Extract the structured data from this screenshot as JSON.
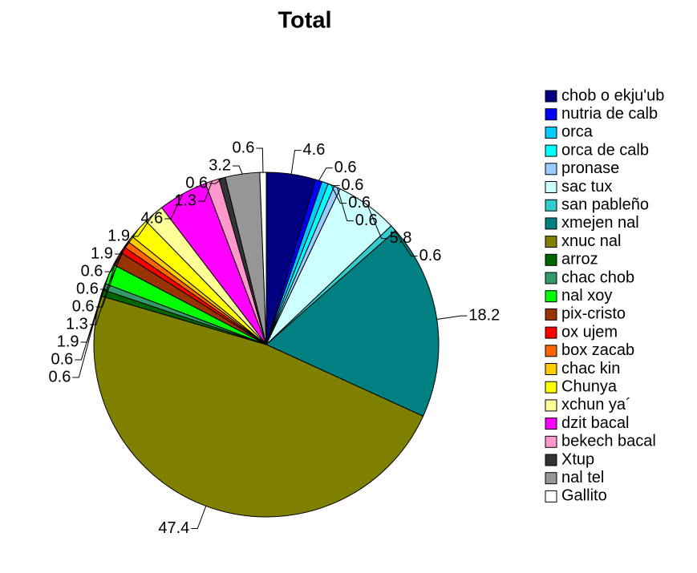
{
  "chart_data": {
    "type": "pie",
    "title": "Total",
    "categories": [
      "chob o ekju'ub",
      "nutria de calb",
      "orca",
      "orca de calb",
      "pronase",
      "sac tux",
      "san pableño",
      "xmejen nal",
      "xnuc nal",
      "arroz",
      "chac chob",
      "nal xoy",
      "pix-cristo",
      "ox ujem",
      "box zacab",
      "chac kin",
      "Chunya",
      "xchun ya´",
      "dzit bacal",
      "bekech bacal",
      "Xtup",
      "nal tel",
      "Gallito"
    ],
    "values": [
      4.6,
      0.6,
      0.6,
      0.6,
      0.6,
      5.8,
      0.6,
      18.2,
      47.4,
      0.6,
      0.6,
      1.9,
      1.3,
      0.6,
      0.6,
      0.6,
      1.9,
      1.9,
      4.6,
      1.3,
      0.6,
      3.2,
      0.6
    ],
    "colors": [
      "#000080",
      "#0000ff",
      "#00ccff",
      "#00ffff",
      "#99ccff",
      "#ccffff",
      "#33cccc",
      "#008080",
      "#808000",
      "#006600",
      "#339966",
      "#00ff00",
      "#993300",
      "#ff0000",
      "#ff6600",
      "#ffcc00",
      "#ffff00",
      "#ffff99",
      "#ff00ff",
      "#ff99cc",
      "#333333",
      "#969696",
      "#ffffff"
    ],
    "legend": "right"
  }
}
